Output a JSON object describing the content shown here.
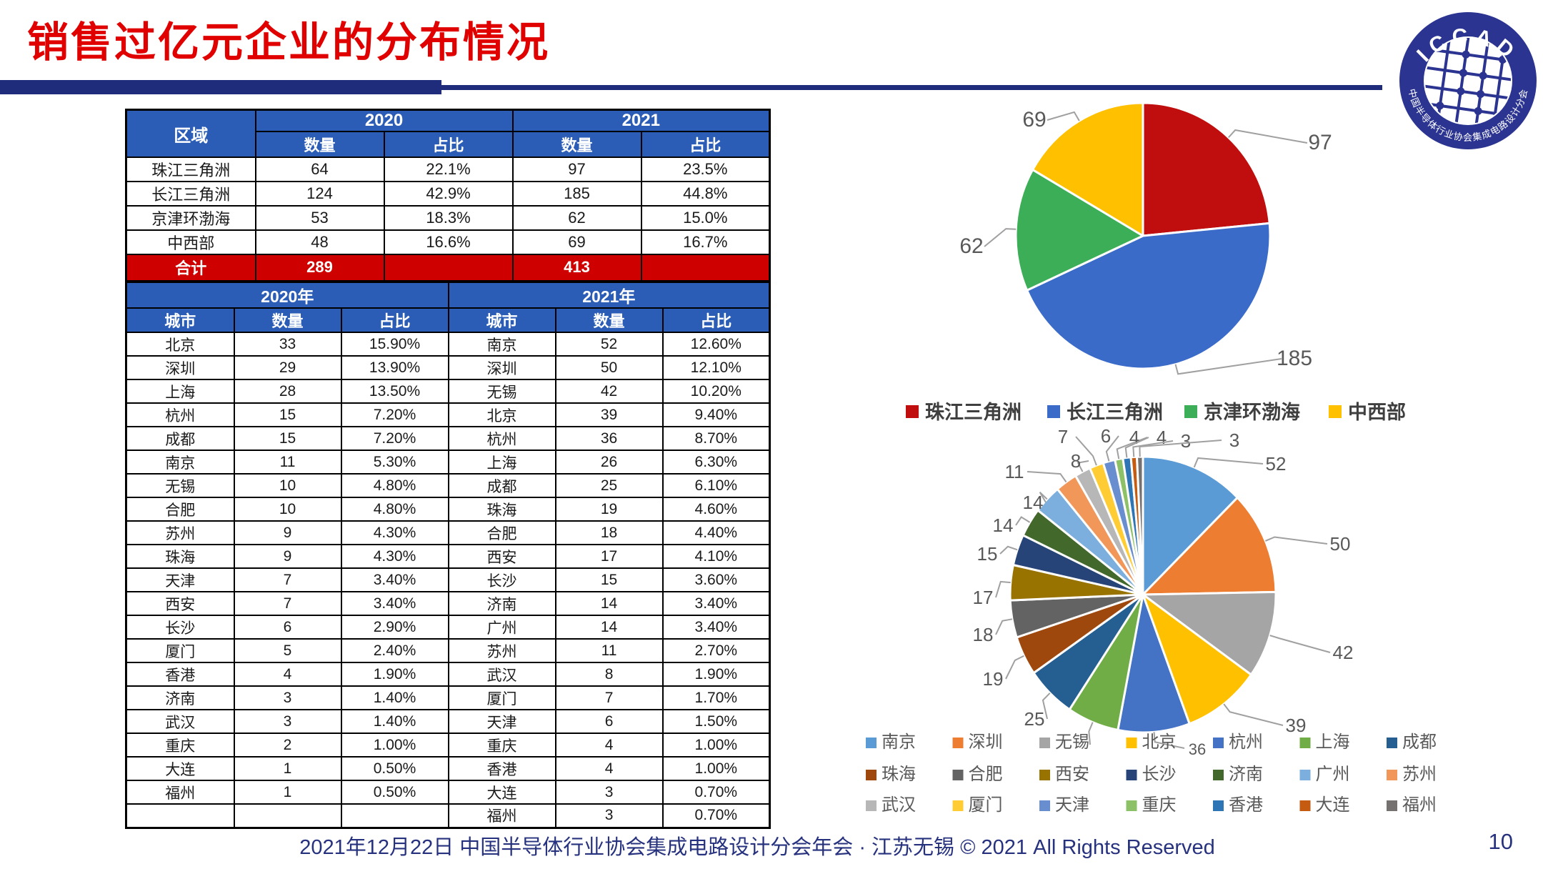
{
  "slide": {
    "title": "销售过亿元企业的分布情况",
    "footer_text": "2021年12月22日 中国半导体行业协会集成电路设计分会年会 · 江苏无锡 © 2021 All Rights Reserved",
    "page_number": "10"
  },
  "logo": {
    "arc_top": "ICCAD",
    "arc_bottom": "中国半导体行业协会集成电路设计分会"
  },
  "region_table": {
    "corner_header": "区域",
    "year_headers": [
      "2020",
      "2021"
    ],
    "sub_headers": [
      "数量",
      "占比"
    ],
    "rows": [
      [
        "珠江三角洲",
        "64",
        "22.1%",
        "97",
        "23.5%"
      ],
      [
        "长江三角洲",
        "124",
        "42.9%",
        "185",
        "44.8%"
      ],
      [
        "京津环渤海",
        "53",
        "18.3%",
        "62",
        "15.0%"
      ],
      [
        "中西部",
        "48",
        "16.6%",
        "69",
        "16.7%"
      ]
    ],
    "total_row": [
      "合计",
      "289",
      "",
      "413",
      ""
    ]
  },
  "city_table": {
    "year_headers": [
      "2020年",
      "2021年"
    ],
    "col_headers": [
      "城市",
      "数量",
      "占比"
    ],
    "rows_2020": [
      [
        "北京",
        "33",
        "15.90%"
      ],
      [
        "深圳",
        "29",
        "13.90%"
      ],
      [
        "上海",
        "28",
        "13.50%"
      ],
      [
        "杭州",
        "15",
        "7.20%"
      ],
      [
        "成都",
        "15",
        "7.20%"
      ],
      [
        "南京",
        "11",
        "5.30%"
      ],
      [
        "无锡",
        "10",
        "4.80%"
      ],
      [
        "合肥",
        "10",
        "4.80%"
      ],
      [
        "苏州",
        "9",
        "4.30%"
      ],
      [
        "珠海",
        "9",
        "4.30%"
      ],
      [
        "天津",
        "7",
        "3.40%"
      ],
      [
        "西安",
        "7",
        "3.40%"
      ],
      [
        "长沙",
        "6",
        "2.90%"
      ],
      [
        "厦门",
        "5",
        "2.40%"
      ],
      [
        "香港",
        "4",
        "1.90%"
      ],
      [
        "济南",
        "3",
        "1.40%"
      ],
      [
        "武汉",
        "3",
        "1.40%"
      ],
      [
        "重庆",
        "2",
        "1.00%"
      ],
      [
        "大连",
        "1",
        "0.50%"
      ],
      [
        "福州",
        "1",
        "0.50%"
      ],
      [
        "",
        "",
        ""
      ]
    ],
    "rows_2021": [
      [
        "南京",
        "52",
        "12.60%"
      ],
      [
        "深圳",
        "50",
        "12.10%"
      ],
      [
        "无锡",
        "42",
        "10.20%"
      ],
      [
        "北京",
        "39",
        "9.40%"
      ],
      [
        "杭州",
        "36",
        "8.70%"
      ],
      [
        "上海",
        "26",
        "6.30%"
      ],
      [
        "成都",
        "25",
        "6.10%"
      ],
      [
        "珠海",
        "19",
        "4.60%"
      ],
      [
        "合肥",
        "18",
        "4.40%"
      ],
      [
        "西安",
        "17",
        "4.10%"
      ],
      [
        "长沙",
        "15",
        "3.60%"
      ],
      [
        "济南",
        "14",
        "3.40%"
      ],
      [
        "广州",
        "14",
        "3.40%"
      ],
      [
        "苏州",
        "11",
        "2.70%"
      ],
      [
        "武汉",
        "8",
        "1.90%"
      ],
      [
        "厦门",
        "7",
        "1.70%"
      ],
      [
        "天津",
        "6",
        "1.50%"
      ],
      [
        "重庆",
        "4",
        "1.00%"
      ],
      [
        "香港",
        "4",
        "1.00%"
      ],
      [
        "大连",
        "3",
        "0.70%"
      ],
      [
        "福州",
        "3",
        "0.70%"
      ]
    ]
  },
  "chart_data": [
    {
      "type": "pie",
      "name": "region-distribution-2021",
      "categories": [
        "珠江三角洲",
        "长江三角洲",
        "京津环渤海",
        "中西部"
      ],
      "values": [
        97,
        185,
        62,
        69
      ],
      "colors": [
        "#c00d0d",
        "#3a6bc9",
        "#3cae57",
        "#ffc000"
      ],
      "start_angle_deg": 0,
      "direction": "clockwise",
      "data_labels": "values",
      "legend_position": "bottom"
    },
    {
      "type": "pie",
      "name": "city-distribution-2021",
      "categories": [
        "南京",
        "深圳",
        "无锡",
        "北京",
        "杭州",
        "上海",
        "成都",
        "珠海",
        "合肥",
        "西安",
        "长沙",
        "济南",
        "广州",
        "苏州",
        "武汉",
        "厦门",
        "天津",
        "重庆",
        "香港",
        "大连",
        "福州"
      ],
      "values": [
        52,
        50,
        42,
        39,
        36,
        26,
        25,
        19,
        18,
        17,
        15,
        14,
        14,
        11,
        8,
        7,
        6,
        4,
        4,
        3,
        3
      ],
      "colors": [
        "#5b9bd5",
        "#ed7d31",
        "#a5a5a5",
        "#ffc000",
        "#4472c4",
        "#70ad47",
        "#255e91",
        "#9e480e",
        "#636363",
        "#997300",
        "#264478",
        "#43682b",
        "#7cafdd",
        "#f1975a",
        "#b7b7b7",
        "#ffcd33",
        "#698ed0",
        "#8cc168",
        "#2e75b6",
        "#c55a11",
        "#767171"
      ],
      "start_angle_deg": 0,
      "direction": "clockwise",
      "data_labels": "values",
      "legend_position": "bottom",
      "note": "data label for 上海 (26) is obscured by the legend in the original"
    }
  ],
  "colors": {
    "title_red": "#e00000",
    "header_blue": "#2b5db6",
    "total_row_red": "#ce0000",
    "divider_navy": "#1f2c7c",
    "footer_navy": "#27327f",
    "data_label_gray": "#595959"
  }
}
